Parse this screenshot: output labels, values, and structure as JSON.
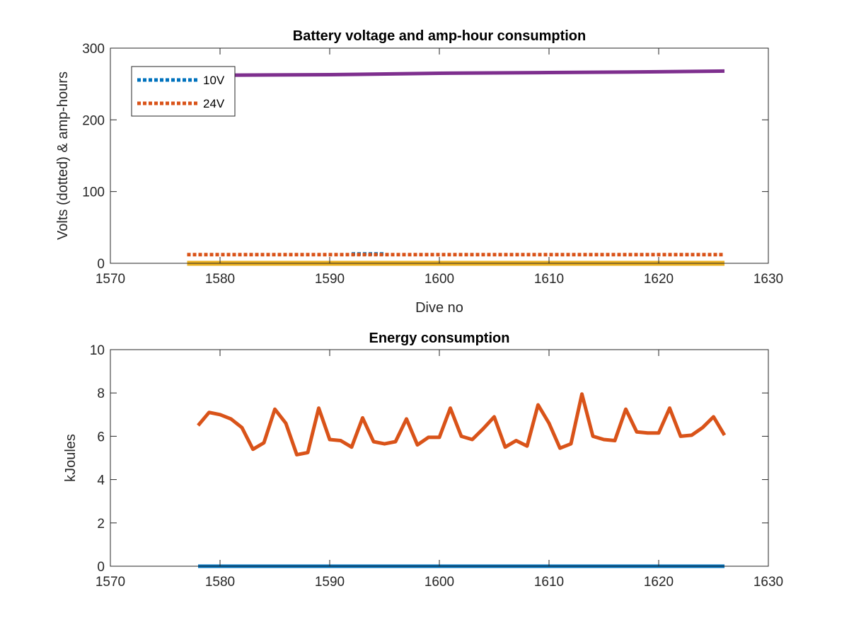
{
  "chart_data": [
    {
      "type": "line",
      "title": "Battery voltage and amp-hour consumption",
      "xlabel": "Dive no",
      "ylabel": "Volts (dotted) & amp-hours",
      "xlim": [
        1570,
        1630
      ],
      "ylim": [
        0,
        300
      ],
      "xticks": [
        1570,
        1580,
        1590,
        1600,
        1610,
        1620,
        1630
      ],
      "yticks": [
        0,
        100,
        200,
        300
      ],
      "grid": false,
      "legend": {
        "placement": "top-left",
        "entries": [
          "10V",
          "24V"
        ]
      },
      "series": [
        {
          "name": "10V",
          "style": "dotted",
          "color": "#0072BD",
          "x": [
            1592,
            1595
          ],
          "y": [
            13,
            13
          ]
        },
        {
          "name": "24V",
          "style": "dotted",
          "color": "#D95319",
          "x": [
            1577,
            1626
          ],
          "y": [
            12,
            12
          ]
        },
        {
          "style": "solid",
          "color": "#EDB120",
          "x": [
            1577,
            1626
          ],
          "y": [
            0,
            0
          ]
        },
        {
          "style": "solid",
          "color": "#7E2F8E",
          "x": [
            1577,
            1590,
            1600,
            1610,
            1620,
            1626
          ],
          "y": [
            262,
            263,
            265,
            266,
            267,
            268
          ]
        }
      ]
    },
    {
      "type": "line",
      "title": "Energy consumption",
      "xlabel": "",
      "ylabel": "kJoules",
      "xlim": [
        1570,
        1630
      ],
      "ylim": [
        0,
        10
      ],
      "xticks": [
        1570,
        1580,
        1590,
        1600,
        1610,
        1620,
        1630
      ],
      "yticks": [
        0,
        2,
        4,
        6,
        8,
        10
      ],
      "grid": false,
      "series": [
        {
          "style": "solid",
          "color": "#0072BD",
          "x": [
            1578,
            1626
          ],
          "y": [
            0,
            0
          ]
        },
        {
          "style": "solid",
          "color": "#D95319",
          "x": [
            1578,
            1579,
            1580,
            1581,
            1582,
            1583,
            1584,
            1585,
            1586,
            1587,
            1588,
            1589,
            1590,
            1591,
            1592,
            1593,
            1594,
            1595,
            1596,
            1597,
            1598,
            1599,
            1600,
            1601,
            1602,
            1603,
            1604,
            1605,
            1606,
            1607,
            1608,
            1609,
            1610,
            1611,
            1612,
            1613,
            1614,
            1615,
            1616,
            1617,
            1618,
            1619,
            1620,
            1621,
            1622,
            1623,
            1624,
            1625,
            1626
          ],
          "y": [
            6.5,
            7.1,
            7.0,
            6.8,
            6.4,
            5.4,
            5.7,
            7.25,
            6.6,
            5.15,
            5.25,
            7.3,
            5.85,
            5.8,
            5.5,
            6.85,
            5.75,
            5.65,
            5.75,
            6.8,
            5.6,
            5.95,
            5.95,
            7.3,
            6.0,
            5.85,
            6.35,
            6.9,
            5.5,
            5.8,
            5.55,
            7.45,
            6.6,
            5.45,
            5.65,
            7.95,
            6.0,
            5.85,
            5.8,
            7.25,
            6.2,
            6.15,
            6.15,
            7.3,
            6.0,
            6.05,
            6.4,
            6.9,
            6.05
          ]
        }
      ]
    }
  ]
}
